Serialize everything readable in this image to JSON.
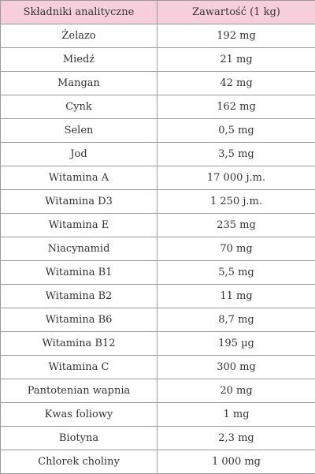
{
  "table": {
    "headers": [
      "Składniki analityczne",
      "Zawartość (1 kg)"
    ],
    "rows": [
      [
        "Żelazo",
        "192 mg"
      ],
      [
        "Miedź",
        "21 mg"
      ],
      [
        "Mangan",
        "42 mg"
      ],
      [
        "Cynk",
        "162 mg"
      ],
      [
        "Selen",
        "0,5 mg"
      ],
      [
        "Jod",
        "3,5 mg"
      ],
      [
        "Witamina A",
        "17 000 j.m."
      ],
      [
        "Witamina D3",
        "1 250 j.m."
      ],
      [
        "Witamina E",
        "235 mg"
      ],
      [
        "Niacynamid",
        "70 mg"
      ],
      [
        "Witamina B1",
        "5,5 mg"
      ],
      [
        "Witamina B2",
        "11 mg"
      ],
      [
        "Witamina B6",
        "8,7 mg"
      ],
      [
        "Witamina B12",
        "195 µg"
      ],
      [
        "Witamina C",
        "300 mg"
      ],
      [
        "Pantotenian wapnia",
        "20 mg"
      ],
      [
        "Kwas foliowy",
        "1 mg"
      ],
      [
        "Biotyna",
        "2,3 mg"
      ],
      [
        "Chlorek choliny",
        "1 000 mg"
      ]
    ]
  },
  "colors": {
    "header_bg": "#f7cfdc",
    "border": "#999999",
    "text": "#333333"
  }
}
